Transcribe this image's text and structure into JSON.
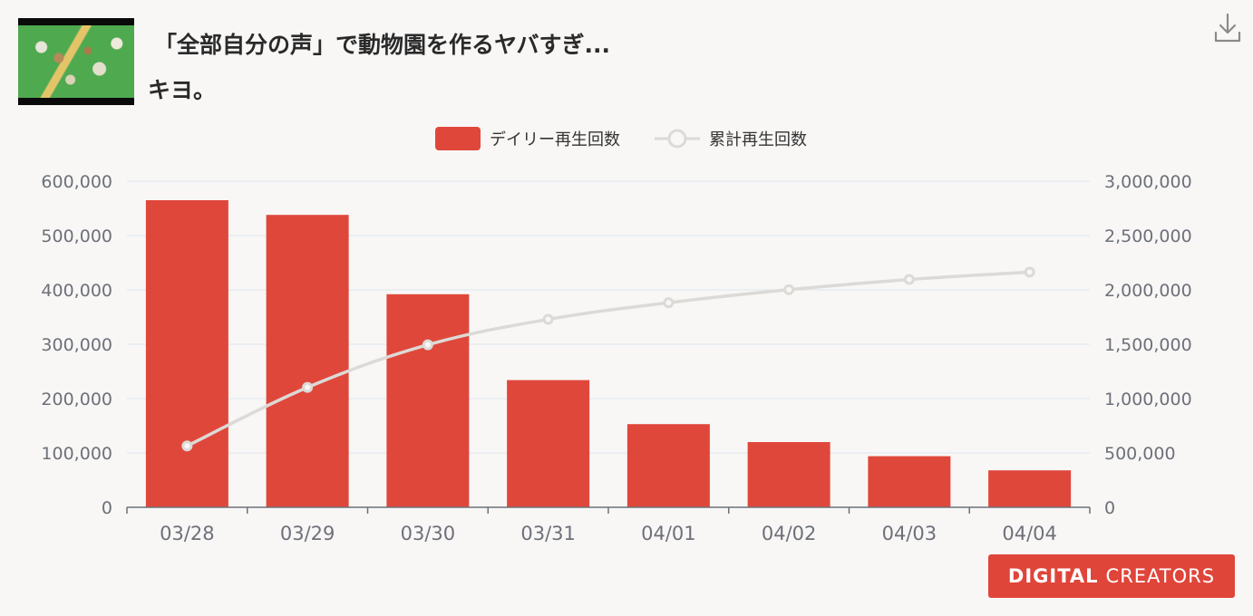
{
  "video": {
    "title": "「全部自分の声」で動物園を作るヤバすぎ...",
    "channel": "キヨ。"
  },
  "toolbar": {
    "download_icon": "download-icon"
  },
  "colors": {
    "bar": "#e0473b",
    "line": "#dcdad6",
    "grid": "#e3e8f0",
    "axis": "#6e7079"
  },
  "legend": {
    "daily": "デイリー再生回数",
    "cumulative": "累計再生回数"
  },
  "chart_data": {
    "type": "bar",
    "title": "",
    "categories": [
      "03/28",
      "03/29",
      "03/30",
      "03/31",
      "04/01",
      "04/02",
      "04/03",
      "04/04"
    ],
    "series": [
      {
        "name": "デイリー再生回数",
        "type": "bar",
        "axis": "left",
        "values": [
          565000,
          538000,
          392000,
          234000,
          153000,
          120000,
          94000,
          68000
        ]
      },
      {
        "name": "累計再生回数",
        "type": "line",
        "axis": "right",
        "values": [
          565000,
          1103000,
          1495000,
          1729000,
          1882000,
          2002000,
          2096000,
          2164000
        ]
      }
    ],
    "y_left": {
      "min": 0,
      "max": 600000,
      "ticks": [
        "0",
        "100,000",
        "200,000",
        "300,000",
        "400,000",
        "500,000",
        "600,000"
      ]
    },
    "y_right": {
      "min": 0,
      "max": 3000000,
      "ticks": [
        "0",
        "500,000",
        "1,000,000",
        "1,500,000",
        "2,000,000",
        "2,500,000",
        "3,000,000"
      ]
    },
    "grid": true,
    "legend_position": "top-center"
  },
  "brand": {
    "part1": "DIGITAL",
    "part2": "CREATORS"
  }
}
